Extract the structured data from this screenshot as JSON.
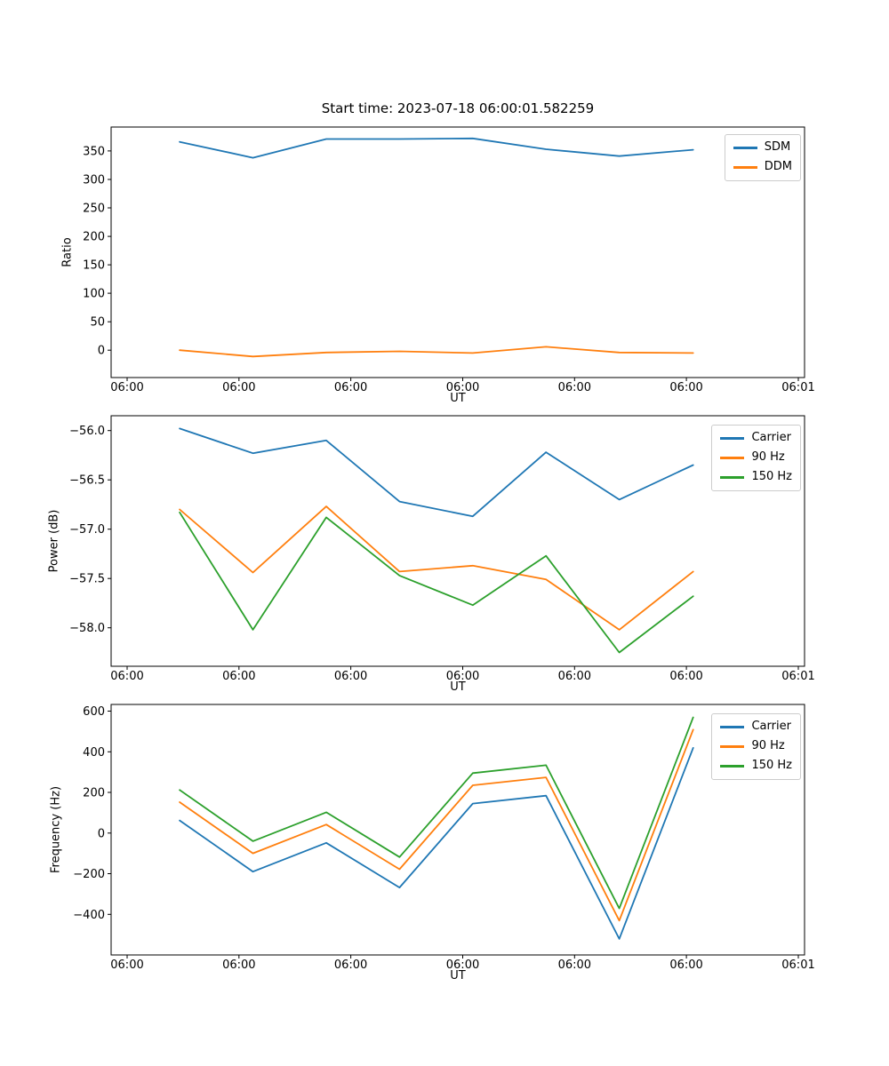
{
  "figure": {
    "title": "Start time: 2023-07-18 06:00:01.582259",
    "background": "#ffffff"
  },
  "chart_data": [
    {
      "type": "line",
      "title": "Start time: 2023-07-18 06:00:01.582259",
      "xlabel": "UT",
      "ylabel": "Ratio",
      "x_axis_note": "seconds after 06:00:00 UT",
      "x_seconds": [
        4.7,
        11.25,
        17.8,
        24.35,
        30.9,
        37.45,
        44.0,
        50.6
      ],
      "xlim_seconds": [
        -1.43,
        60.56
      ],
      "ylim": [
        -48,
        392
      ],
      "grid": false,
      "xticks": [
        {
          "s": 0,
          "label": "06:00"
        },
        {
          "s": 10,
          "label": "06:00"
        },
        {
          "s": 20,
          "label": "06:00"
        },
        {
          "s": 30,
          "label": "06:00"
        },
        {
          "s": 40,
          "label": "06:00"
        },
        {
          "s": 50,
          "label": "06:00"
        },
        {
          "s": 60,
          "label": "06:01"
        }
      ],
      "yticks": [
        {
          "v": 0,
          "label": "0"
        },
        {
          "v": 50,
          "label": "50"
        },
        {
          "v": 100,
          "label": "100"
        },
        {
          "v": 150,
          "label": "150"
        },
        {
          "v": 200,
          "label": "200"
        },
        {
          "v": 250,
          "label": "250"
        },
        {
          "v": 300,
          "label": "300"
        },
        {
          "v": 350,
          "label": "350"
        }
      ],
      "legend": {
        "position": "upper right",
        "entries": [
          "SDM",
          "DDM"
        ]
      },
      "series": [
        {
          "name": "SDM",
          "color": "#1f77b4",
          "values": [
            366,
            338,
            371,
            371,
            372,
            353,
            341,
            352
          ]
        },
        {
          "name": "DDM",
          "color": "#ff7f0e",
          "values": [
            0,
            -11,
            -4,
            -2,
            -5,
            6,
            -4,
            -5
          ]
        }
      ]
    },
    {
      "type": "line",
      "xlabel": "UT",
      "ylabel": "Power (dB)",
      "x_seconds": [
        4.7,
        11.25,
        17.8,
        24.35,
        30.9,
        37.45,
        44.0,
        50.6
      ],
      "xlim_seconds": [
        -1.43,
        60.56
      ],
      "ylim": [
        -58.39,
        -55.85
      ],
      "grid": false,
      "xticks": [
        {
          "s": 0,
          "label": "06:00"
        },
        {
          "s": 10,
          "label": "06:00"
        },
        {
          "s": 20,
          "label": "06:00"
        },
        {
          "s": 30,
          "label": "06:00"
        },
        {
          "s": 40,
          "label": "06:00"
        },
        {
          "s": 50,
          "label": "06:00"
        },
        {
          "s": 60,
          "label": "06:01"
        }
      ],
      "yticks": [
        {
          "v": -56.0,
          "label": "−56.0"
        },
        {
          "v": -56.5,
          "label": "−56.5"
        },
        {
          "v": -57.0,
          "label": "−57.0"
        },
        {
          "v": -57.5,
          "label": "−57.5"
        },
        {
          "v": -58.0,
          "label": "−58.0"
        }
      ],
      "legend": {
        "position": "upper right",
        "entries": [
          "Carrier",
          "90 Hz",
          "150 Hz"
        ]
      },
      "series": [
        {
          "name": "Carrier",
          "color": "#1f77b4",
          "values": [
            -55.98,
            -56.23,
            -56.1,
            -56.72,
            -56.87,
            -56.22,
            -56.7,
            -56.35
          ]
        },
        {
          "name": "90 Hz",
          "color": "#ff7f0e",
          "values": [
            -56.8,
            -57.44,
            -56.77,
            -57.43,
            -57.37,
            -57.51,
            -58.02,
            -57.43
          ]
        },
        {
          "name": "150 Hz",
          "color": "#2ca02c",
          "values": [
            -56.83,
            -58.02,
            -56.88,
            -57.47,
            -57.77,
            -57.27,
            -58.25,
            -57.68
          ]
        }
      ]
    },
    {
      "type": "line",
      "xlabel": "UT",
      "ylabel": "Frequency (Hz)",
      "x_seconds": [
        4.7,
        11.25,
        17.8,
        24.35,
        30.9,
        37.45,
        44.0,
        50.6
      ],
      "xlim_seconds": [
        -1.43,
        60.56
      ],
      "ylim": [
        -600,
        633
      ],
      "grid": false,
      "xticks": [
        {
          "s": 0,
          "label": "06:00"
        },
        {
          "s": 10,
          "label": "06:00"
        },
        {
          "s": 20,
          "label": "06:00"
        },
        {
          "s": 30,
          "label": "06:00"
        },
        {
          "s": 40,
          "label": "06:00"
        },
        {
          "s": 50,
          "label": "06:00"
        },
        {
          "s": 60,
          "label": "06:01"
        }
      ],
      "yticks": [
        {
          "v": 600,
          "label": "600"
        },
        {
          "v": 400,
          "label": "400"
        },
        {
          "v": 200,
          "label": "200"
        },
        {
          "v": 0,
          "label": "0"
        },
        {
          "v": -200,
          "label": "−200"
        },
        {
          "v": -400,
          "label": "−400"
        }
      ],
      "legend": {
        "position": "upper right",
        "entries": [
          "Carrier",
          "90 Hz",
          "150 Hz"
        ]
      },
      "series": [
        {
          "name": "Carrier",
          "color": "#1f77b4",
          "values": [
            62,
            -190,
            -48,
            -268,
            145,
            184,
            -521,
            419
          ]
        },
        {
          "name": "90 Hz",
          "color": "#ff7f0e",
          "values": [
            152,
            -100,
            42,
            -178,
            235,
            274,
            -431,
            509
          ]
        },
        {
          "name": "150 Hz",
          "color": "#2ca02c",
          "values": [
            212,
            -40,
            102,
            -118,
            295,
            334,
            -371,
            569
          ]
        }
      ]
    }
  ]
}
